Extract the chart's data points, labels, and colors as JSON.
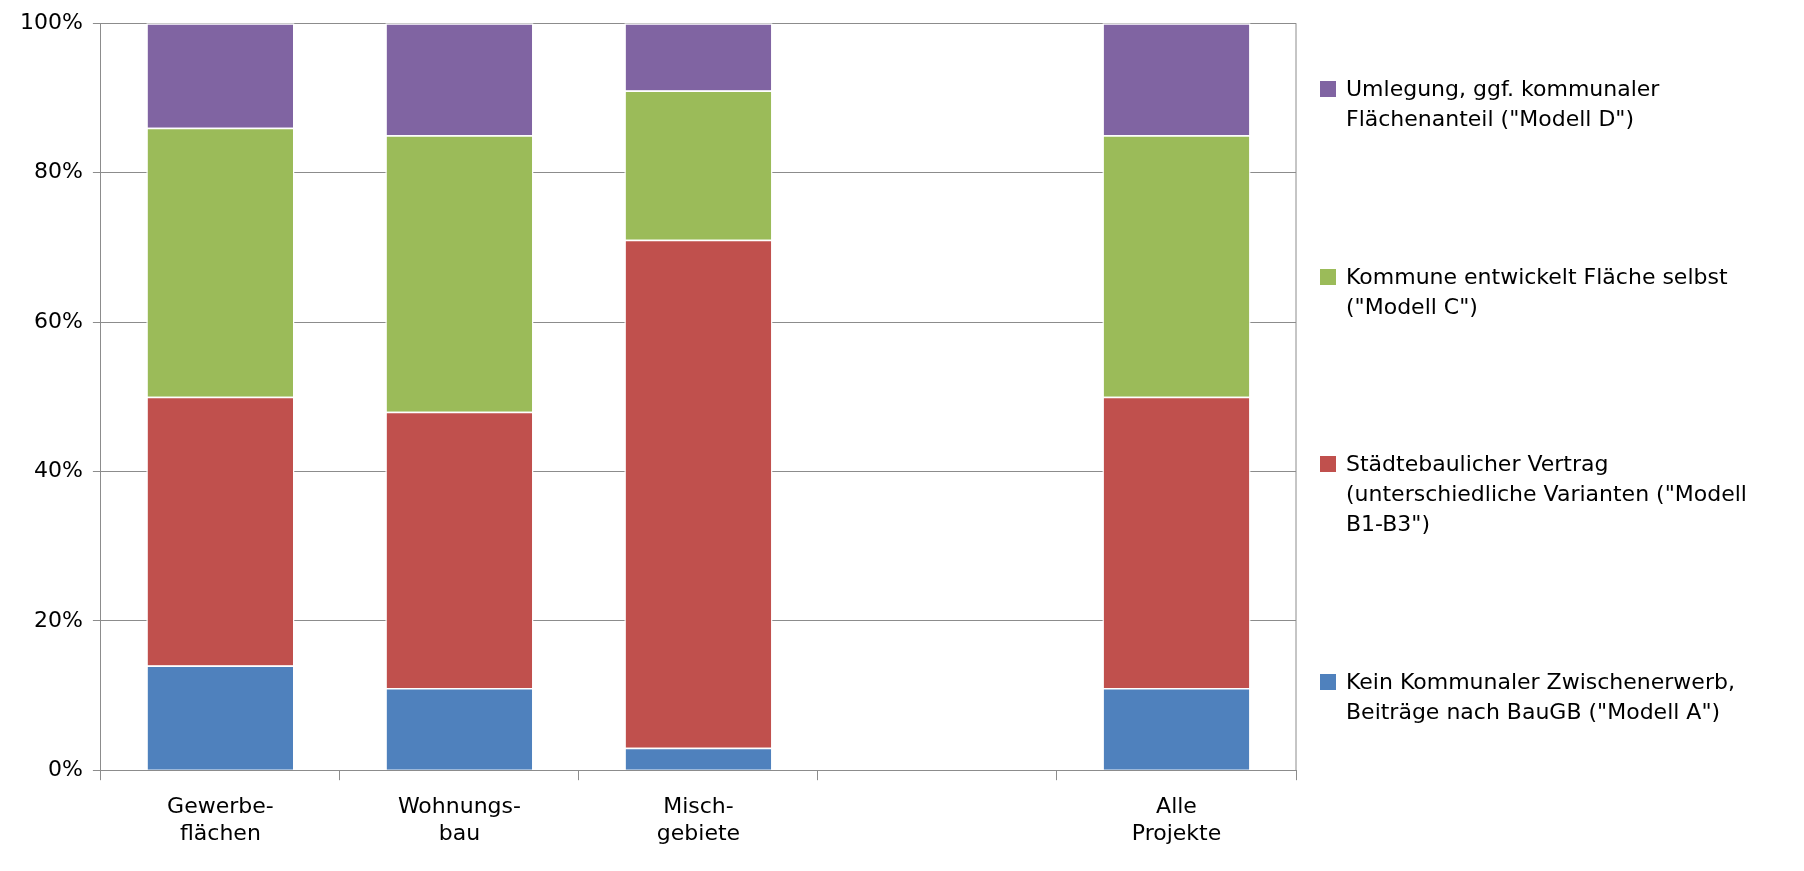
{
  "chart_data": {
    "type": "bar",
    "stacked": true,
    "categories": [
      "Gewerbe-\nflächen",
      "Wohnungs-\nbau",
      "Misch-\ngebiete",
      null,
      "Alle\nProjekte"
    ],
    "series": [
      {
        "name": "Kein Kommunaler Zwischenerwerb, Beiträge nach BauGB (\"Modell A\")",
        "color": "#4f81bd",
        "values": [
          14,
          11,
          3,
          null,
          11
        ]
      },
      {
        "name": "Städtebaulicher Vertrag (unterschiedliche Varianten (\"Modell B1-B3\")",
        "color": "#c0504d",
        "values": [
          36,
          37,
          68,
          null,
          39
        ]
      },
      {
        "name": "Kommune entwickelt Fläche selbst (\"Modell C\")",
        "color": "#9bbb59",
        "values": [
          36,
          37,
          20,
          null,
          35
        ]
      },
      {
        "name": "Umlegung, ggf. kommunaler Flächenanteil (\"Modell D\")",
        "color": "#8064a2",
        "values": [
          14,
          15,
          9,
          null,
          15
        ]
      }
    ],
    "ylim": [
      0,
      100
    ],
    "yticks": [
      {
        "value": 0,
        "label": "0%"
      },
      {
        "value": 20,
        "label": "20%"
      },
      {
        "value": 40,
        "label": "40%"
      },
      {
        "value": 60,
        "label": "60%"
      },
      {
        "value": 80,
        "label": "80%"
      },
      {
        "value": 100,
        "label": "100%"
      }
    ],
    "grid": "y",
    "legend": "right"
  }
}
